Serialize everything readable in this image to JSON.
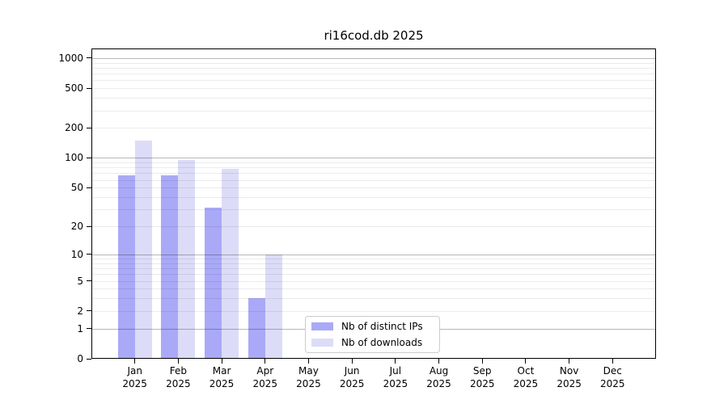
{
  "chart_data": {
    "type": "bar",
    "title": "ri16cod.db 2025",
    "categories": [
      "Jan",
      "Feb",
      "Mar",
      "Apr",
      "May",
      "Jun",
      "Jul",
      "Aug",
      "Sep",
      "Oct",
      "Nov",
      "Dec"
    ],
    "category_year": "2025",
    "series": [
      {
        "name": "Nb of distinct IPs",
        "color": "#a9a9f7",
        "values": [
          67,
          67,
          31,
          3,
          0,
          0,
          0,
          0,
          0,
          0,
          0,
          0
        ]
      },
      {
        "name": "Nb of downloads",
        "color": "#dcdcf8",
        "values": [
          150,
          96,
          77,
          10,
          0,
          0,
          0,
          0,
          0,
          0,
          0,
          0
        ]
      }
    ],
    "yticks": [
      0,
      1,
      2,
      5,
      10,
      20,
      50,
      100,
      200,
      500,
      1000
    ],
    "yscale": "log10(1+value)",
    "ylim": [
      0,
      1250
    ],
    "grid": true,
    "legend_position": "lower center"
  },
  "colors": {
    "background": "#ffffff",
    "bar_distinct_ips": "#a9a9f7",
    "bar_downloads": "#dcdcf8",
    "spine": "#000000",
    "grid_major": "rgba(0,0,0,0.28)",
    "grid_minor": "rgba(0,0,0,0.08)",
    "text": "#000000",
    "legend_border": "#cccccc"
  }
}
